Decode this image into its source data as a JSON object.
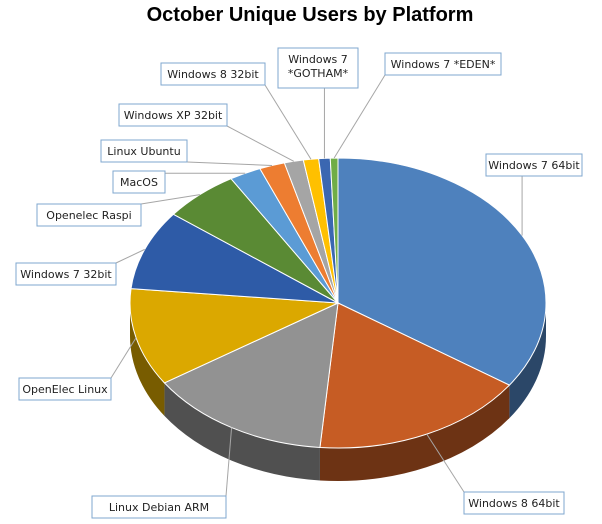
{
  "chart_data": {
    "type": "pie",
    "title": "October Unique Users by Platform",
    "three_d": true,
    "slices": [
      {
        "label": "Windows 7 64bit",
        "value": 35.0,
        "color": "#4e81bd"
      },
      {
        "label": "Windows 8 64bit",
        "value": 17.0,
        "color": "#c65c24"
      },
      {
        "label": "Linux Debian ARM",
        "value": 14.5,
        "color": "#929292"
      },
      {
        "label": "OpenElec Linux",
        "value": 11.0,
        "color": "#dba800"
      },
      {
        "label": "Windows 7 32bit",
        "value": 9.0,
        "color": "#2e5ba7"
      },
      {
        "label": "Openelec Raspi",
        "value": 6.0,
        "color": "#5a8a34"
      },
      {
        "label": "MacOS",
        "value": 2.5,
        "color": "#5b9bd5"
      },
      {
        "label": "Linux Ubuntu",
        "value": 2.0,
        "color": "#ed7d31"
      },
      {
        "label": "Windows XP 32bit",
        "value": 1.5,
        "color": "#a5a5a5"
      },
      {
        "label": "Windows 8 32bit",
        "value": 1.2,
        "color": "#ffc000"
      },
      {
        "label": "Windows 7 *GOTHAM*",
        "value": 0.9,
        "color": "#3b67b1"
      },
      {
        "label": "Windows 7 *EDEN*",
        "value": 0.6,
        "color": "#70ad47"
      }
    ]
  }
}
